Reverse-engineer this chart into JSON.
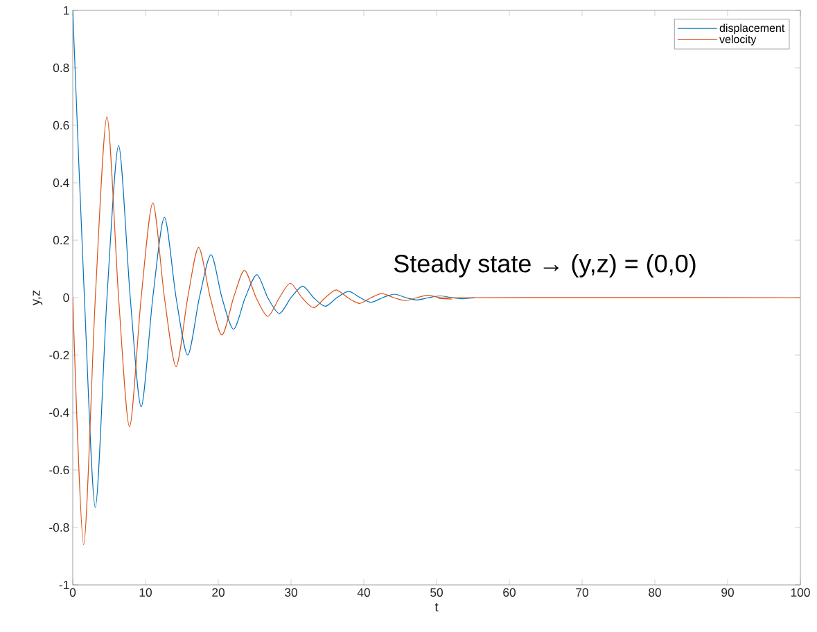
{
  "chart_data": {
    "type": "line",
    "xlabel": "t",
    "ylabel": "y,z",
    "xlim": [
      0,
      100
    ],
    "ylim": [
      -1,
      1
    ],
    "xticks": [
      0,
      10,
      20,
      30,
      40,
      50,
      60,
      70,
      80,
      90,
      100
    ],
    "yticks": [
      -1,
      -0.8,
      -0.6,
      -0.4,
      -0.2,
      0,
      0.2,
      0.4,
      0.6,
      0.8,
      1
    ],
    "grid": false,
    "legend": "top right",
    "marker": "none",
    "line_style": "solid",
    "annotations": [
      "Steady state → (y,z) = (0,0)"
    ],
    "series": [
      {
        "name": "displacement",
        "color": "#0072bd",
        "x": [
          0,
          1.6,
          3.1,
          4.7,
          6.3,
          7.9,
          9.4,
          11.0,
          12.6,
          14.2,
          15.8,
          17.4,
          19.0,
          20.5,
          22.1,
          23.7,
          25.3,
          26.8,
          28.4,
          30.0,
          31.6,
          33.1,
          34.7,
          36.3,
          37.9,
          39.5,
          41.0,
          42.6,
          44.2,
          45.8,
          47.3,
          48.9,
          50.5,
          52.1,
          53.6,
          55.2
        ],
        "values": [
          1,
          0,
          -0.73,
          0,
          0.53,
          0,
          -0.38,
          0,
          0.28,
          0,
          -0.2,
          0,
          0.15,
          0,
          -0.11,
          0,
          0.08,
          0,
          -0.055,
          0,
          0.04,
          0,
          -0.03,
          0,
          0.022,
          0,
          -0.016,
          0,
          0.012,
          0,
          -0.008,
          0,
          0.006,
          0,
          -0.004,
          0
        ]
      },
      {
        "name": "velocity",
        "color": "#d95319",
        "x": [
          0,
          1.5,
          3.1,
          4.7,
          6.3,
          7.8,
          9.4,
          11.0,
          12.6,
          14.2,
          15.8,
          17.3,
          18.9,
          20.5,
          22.1,
          23.6,
          25.2,
          26.8,
          28.4,
          29.9,
          31.5,
          33.1,
          34.7,
          36.2,
          37.8,
          39.4,
          41.0,
          42.5,
          44.1,
          45.7,
          47.3,
          48.8,
          50.4,
          52.0,
          53.6,
          100
        ],
        "values": [
          0,
          -0.86,
          0,
          0.63,
          0,
          -0.45,
          0,
          0.33,
          0,
          -0.24,
          0,
          0.175,
          0,
          -0.13,
          0,
          0.095,
          0,
          -0.065,
          0,
          0.05,
          0,
          -0.035,
          0,
          0.027,
          0,
          -0.02,
          0,
          0.014,
          0,
          -0.01,
          0,
          0.008,
          0,
          -0.005,
          0,
          0
        ]
      }
    ]
  }
}
